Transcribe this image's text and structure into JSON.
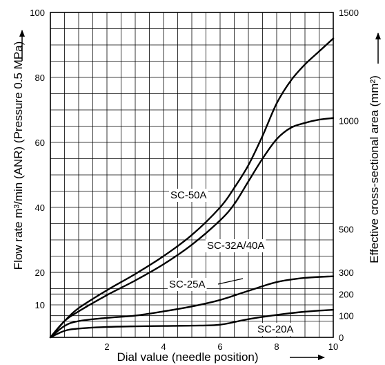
{
  "chart_data": {
    "type": "line",
    "xlabel": "Dial value (needle position)",
    "ylabel_left": "Flow rate m³/min (ANR) (Pressure 0.5 MPa)",
    "ylabel_right": "Effective cross-sectional area (mm²)",
    "xlim": [
      0,
      10
    ],
    "ylim_left": [
      0,
      100
    ],
    "x_ticks": [
      "2",
      "4",
      "6",
      "8",
      "10"
    ],
    "y_ticks_left": [
      "10",
      "20",
      "40",
      "60",
      "80",
      "100"
    ],
    "y_ticks_right": [
      "0",
      "100",
      "200",
      "300",
      "500",
      "1000",
      "1500"
    ],
    "grid": true,
    "series": [
      {
        "name": "SC-50A",
        "x": [
          0,
          0.5,
          1,
          2,
          3,
          4,
          5,
          6,
          6.5,
          7,
          7.5,
          8,
          8.5,
          9,
          9.5,
          10
        ],
        "y": [
          0,
          5,
          9,
          14.5,
          19.5,
          25,
          31.5,
          40,
          46,
          53,
          62,
          72,
          79,
          84,
          88,
          92
        ]
      },
      {
        "name": "SC-32A/40A",
        "x": [
          0,
          0.5,
          1,
          2,
          3,
          4,
          5,
          6,
          6.5,
          7,
          7.5,
          8,
          8.5,
          9,
          9.5,
          10
        ],
        "y": [
          0,
          5,
          8,
          13,
          17.5,
          22.5,
          28.5,
          36,
          41,
          48,
          55,
          61,
          64.5,
          66,
          67,
          67.5
        ]
      },
      {
        "name": "SC-25A",
        "x": [
          0,
          0.5,
          1,
          2,
          3,
          4,
          5,
          6,
          7,
          8,
          9,
          10
        ],
        "y": [
          0,
          3.5,
          5,
          6,
          6.7,
          8,
          9.5,
          11.5,
          14.3,
          17,
          18.3,
          18.8
        ]
      },
      {
        "name": "SC-20A",
        "x": [
          0,
          0.5,
          1,
          2,
          3,
          4,
          5,
          6,
          7,
          8,
          9,
          10
        ],
        "y": [
          0,
          2,
          2.7,
          3.2,
          3.4,
          3.5,
          3.6,
          3.9,
          5.6,
          6.9,
          7.9,
          8.5
        ]
      }
    ]
  }
}
